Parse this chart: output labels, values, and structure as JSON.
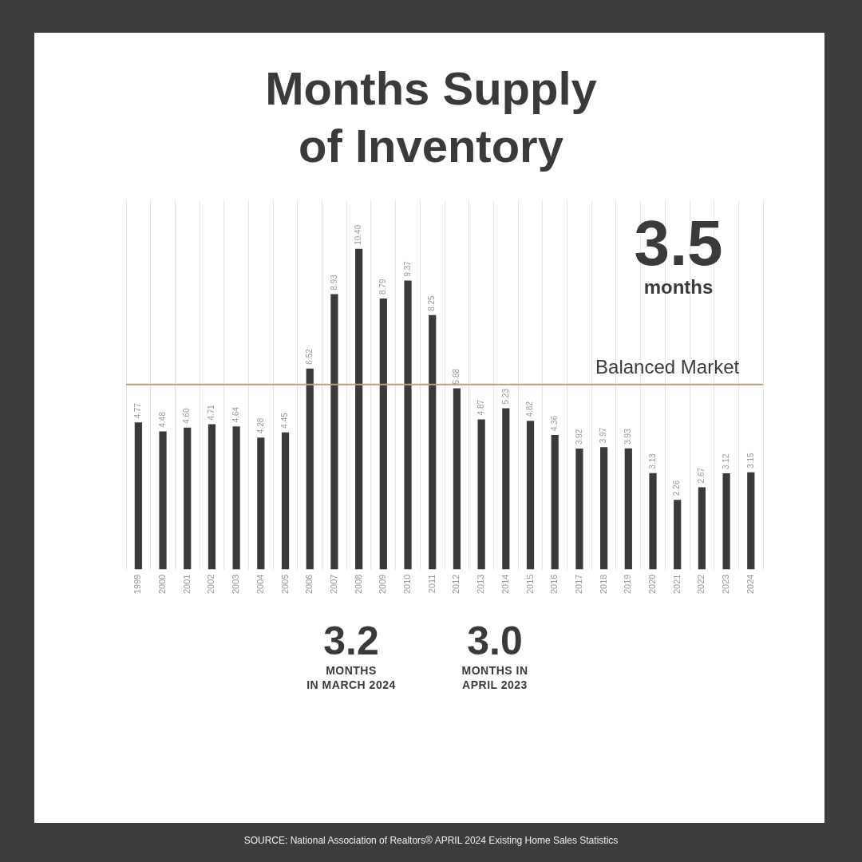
{
  "chart_data": {
    "type": "bar",
    "title": "Months Supply\nof Inventory",
    "categories": [
      "1999",
      "2000",
      "2001",
      "2002",
      "2003",
      "2004",
      "2005",
      "2006",
      "2007",
      "2008",
      "2009",
      "2010",
      "2011",
      "2012",
      "2013",
      "2014",
      "2015",
      "2016",
      "2017",
      "2018",
      "2019",
      "2020",
      "2021",
      "2022",
      "2023",
      "2024"
    ],
    "values": [
      4.77,
      4.48,
      4.6,
      4.71,
      4.64,
      4.28,
      4.45,
      6.52,
      8.93,
      10.4,
      8.79,
      9.37,
      8.25,
      5.88,
      4.87,
      5.23,
      4.82,
      4.36,
      3.92,
      3.97,
      3.93,
      3.13,
      2.26,
      2.67,
      3.12,
      3.15
    ],
    "color": "#3a3a3a",
    "ylim": [
      0,
      12
    ],
    "value_labels": [
      "4.77",
      "4.48",
      "4.60",
      "4.71",
      "4.64",
      "4.28",
      "4.45",
      "6.52",
      "8.93",
      "10.40",
      "8.79",
      "9.37",
      "8.25",
      "5.88",
      "4.87",
      "5.23",
      "4.82",
      "4.36",
      "3.92",
      "3.97",
      "3.93",
      "3.13",
      "2.26",
      "2.67",
      "3.12",
      "3.15"
    ],
    "tick_labels": "x",
    "grid": "x",
    "legend": false,
    "ref_lines": [
      {
        "axis": "y",
        "value": 6,
        "label": "Balanced Market",
        "color": "#b5a47a"
      }
    ],
    "annotations": [
      "3.5\nmonths",
      "3.2\nMONTHS\nIN MARCH 2024",
      "3.0\nMONTHS IN\nAPRIL 2023",
      "SOURCE: National Association of Realtors® APRIL 2024 Existing Home Sales Statistics"
    ]
  }
}
